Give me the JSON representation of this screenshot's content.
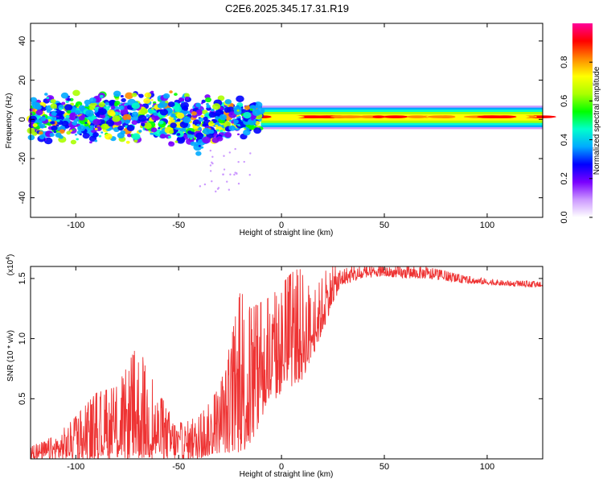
{
  "title": "C2E6.2025.345.17.31.R19",
  "chart_data": [
    {
      "type": "heatmap",
      "title": "C2E6.2025.345.17.31.R19",
      "xlabel": "Height of straight line (km)",
      "ylabel": "Frequency (Hz)",
      "xlim": [
        -122,
        127
      ],
      "ylim": [
        -50,
        49
      ],
      "xticks": [
        -100,
        -50,
        0,
        50,
        100
      ],
      "xtick_labels": [
        "-100",
        "-50",
        "0",
        "50",
        "100"
      ],
      "yticks": [
        -40,
        -20,
        0,
        20,
        40
      ],
      "ytick_labels": [
        "-40",
        "-20",
        "0",
        "20",
        "40"
      ],
      "colorbar": {
        "label": "Normalized spectral amplitude",
        "range": [
          0,
          1
        ],
        "ticks": [
          0.0,
          0.2,
          0.4,
          0.6,
          0.8
        ],
        "tick_labels": [
          "0.0",
          "0.2",
          "0.4",
          "0.6",
          "0.8"
        ],
        "colormap": [
          "#ffffff",
          "#cc99ff",
          "#7a00ff",
          "#0000ff",
          "#00aaff",
          "#00ffcc",
          "#00ff00",
          "#aaff00",
          "#ffff00",
          "#ff8800",
          "#ff0000",
          "#ff0099"
        ]
      },
      "band": {
        "center_freq_hz": 1,
        "noisy_region_x": [
          -122,
          -20
        ],
        "steady_region_x": [
          -10,
          127
        ],
        "steady_half_width_hz": 5
      }
    },
    {
      "type": "line",
      "xlabel": "Height of straight line (km)",
      "ylabel": "SNR (10 * v/v)",
      "y_multiplier": "(x10",
      "y_multiplier_exp": "4",
      "y_multiplier_close": ")",
      "xlim": [
        -122,
        127
      ],
      "ylim": [
        0,
        1.6
      ],
      "xticks": [
        -100,
        -50,
        0,
        50,
        100
      ],
      "xtick_labels": [
        "-100",
        "-50",
        "0",
        "50",
        "100"
      ],
      "yticks": [
        0.5,
        1.0,
        1.5
      ],
      "ytick_labels": [
        "0.5",
        "1.0",
        "1.5"
      ],
      "series": [
        {
          "name": "SNR",
          "color": "#ee3333",
          "x": [
            -122,
            -110,
            -100,
            -90,
            -80,
            -70,
            -60,
            -50,
            -40,
            -30,
            -25,
            -20,
            -15,
            -10,
            -5,
            0,
            5,
            10,
            15,
            20,
            25,
            30,
            40,
            50,
            60,
            70,
            80,
            90,
            100,
            110,
            120,
            127
          ],
          "y_low": [
            0.0,
            0.0,
            0.0,
            0.0,
            0.0,
            0.0,
            0.0,
            0.0,
            0.0,
            0.05,
            0.05,
            0.05,
            0.1,
            0.3,
            0.45,
            0.55,
            0.6,
            0.65,
            0.85,
            1.05,
            1.3,
            1.45,
            1.5,
            1.52,
            1.5,
            1.5,
            1.48,
            1.46,
            1.45,
            1.44,
            1.43,
            1.43
          ],
          "y_high": [
            0.1,
            0.2,
            0.35,
            0.55,
            0.6,
            0.95,
            0.55,
            0.3,
            0.35,
            0.6,
            0.95,
            1.4,
            1.25,
            1.3,
            1.35,
            1.45,
            1.55,
            1.6,
            1.35,
            1.55,
            1.6,
            1.6,
            1.6,
            1.6,
            1.6,
            1.6,
            1.56,
            1.52,
            1.5,
            1.48,
            1.48,
            1.47
          ]
        }
      ]
    }
  ]
}
